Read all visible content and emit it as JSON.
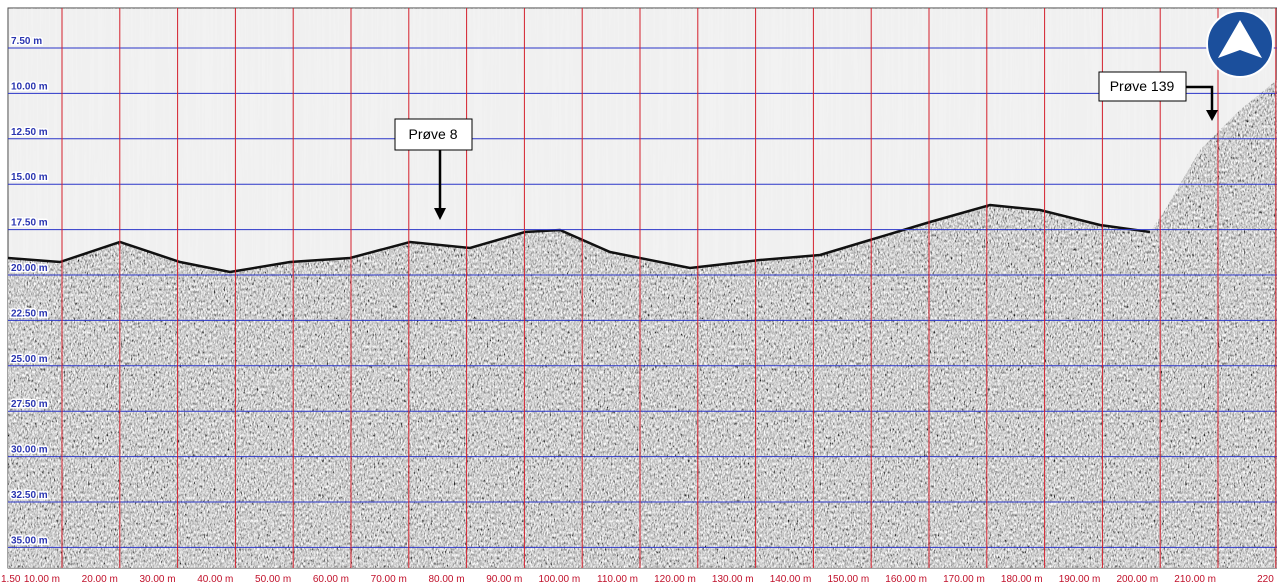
{
  "y_axis": {
    "labels": [
      "7.50 m",
      "10.00 m",
      "12.50 m",
      "15.00 m",
      "17.50 m",
      "20.00 m",
      "22.50 m",
      "25.00 m",
      "27.50 m",
      "30.00 m",
      "32.50 m",
      "35.00 m"
    ]
  },
  "x_axis": {
    "labels": [
      "1.50",
      "10.00 m",
      "20.00 m",
      "30.00 m",
      "40.00 m",
      "50.00 m",
      "60.00 m",
      "70.00 m",
      "80.00 m",
      "90.00 m",
      "100.00 m",
      "110.00 m",
      "120.00 m",
      "130.00 m",
      "140.00 m",
      "150.00 m",
      "160.00 m",
      "170.00 m",
      "180.00 m",
      "190.00 m",
      "200.00 m",
      "210.00 m",
      "220"
    ]
  },
  "annotations": [
    {
      "label": "Prøve 8"
    },
    {
      "label": "Prøve 139"
    }
  ]
}
